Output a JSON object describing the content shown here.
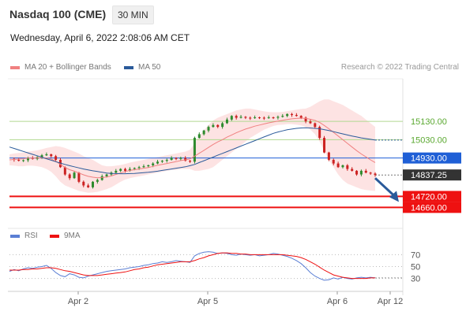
{
  "header": {
    "instrument": "Nasdaq 100 (CME)",
    "timeframe": "30 MIN",
    "datetime": "Wednesday, April 6, 2022 2:08:06 AM CET"
  },
  "legend": {
    "ma20": "MA 20 + Bollinger Bands",
    "ma50": "MA 50",
    "credit": "Research © 2022 Trading Central"
  },
  "rsi_legend": {
    "rsi": "RSI",
    "ma9": "9MA"
  },
  "colors": {
    "ma20": "#f08080",
    "ma50": "#2a5a9a",
    "bollinger": "#fde0e0",
    "up": "#2e8b2e",
    "down": "#cc2222",
    "resistance": "#b0d890",
    "pivot": "#1f5fd6",
    "support": "#ee1111",
    "last": "#333333",
    "arrow": "#2a5a9a",
    "rsi": "#5b7fd4",
    "rsi_ma": "#ee1111"
  },
  "chart_data": [
    {
      "type": "candlestick",
      "title": "Nasdaq 100 (CME)",
      "timeframe": "30 MIN",
      "x_ticks": [
        "Apr 2",
        "Apr 5",
        "Apr 6",
        "Apr 12"
      ],
      "ylim": [
        14610,
        15320
      ],
      "levels": [
        {
          "label": "15130.00",
          "value": 15130,
          "kind": "resistance"
        },
        {
          "label": "15030.00",
          "value": 15030,
          "kind": "resistance"
        },
        {
          "label": "14930.00",
          "value": 14930,
          "kind": "pivot"
        },
        {
          "label": "14837.25",
          "value": 14837.25,
          "kind": "last"
        },
        {
          "label": "14720.00",
          "value": 14720,
          "kind": "support"
        },
        {
          "label": "14660.00",
          "value": 14660,
          "kind": "support"
        }
      ],
      "closes": [
        14925,
        14920,
        14915,
        14918,
        14930,
        14925,
        14935,
        14945,
        14950,
        14940,
        14920,
        14880,
        14840,
        14820,
        14850,
        14800,
        14780,
        14770,
        14800,
        14810,
        14830,
        14840,
        14850,
        14860,
        14870,
        14860,
        14870,
        14875,
        14880,
        14885,
        14890,
        14900,
        14910,
        14915,
        14920,
        14930,
        14925,
        14930,
        14915,
        14910,
        15040,
        15060,
        15080,
        15100,
        15110,
        15100,
        15120,
        15140,
        15160,
        15150,
        15155,
        15150,
        15148,
        15152,
        15150,
        15148,
        15152,
        15150,
        15155,
        15160,
        15170,
        15165,
        15160,
        15150,
        15130,
        15120,
        15100,
        15040,
        14960,
        14920,
        14900,
        14880,
        14890,
        14870,
        14860,
        14840,
        14860,
        14850,
        14845,
        14837.25
      ],
      "ma20": [
        14920,
        14922,
        14924,
        14926,
        14930,
        14929,
        14930,
        14932,
        14930,
        14925,
        14912,
        14895,
        14878,
        14866,
        14858,
        14848,
        14838,
        14830,
        14825,
        14822,
        14823,
        14826,
        14832,
        14840,
        14848,
        14856,
        14862,
        14866,
        14870,
        14874,
        14878,
        14884,
        14890,
        14895,
        14900,
        14905,
        14910,
        14916,
        14920,
        14925,
        14940,
        14956,
        14972,
        14988,
        15004,
        15018,
        15030,
        15044,
        15056,
        15068,
        15078,
        15088,
        15096,
        15104,
        15110,
        15116,
        15122,
        15127,
        15132,
        15136,
        15140,
        15144,
        15146,
        15148,
        15146,
        15142,
        15136,
        15124,
        15108,
        15090,
        15070,
        15050,
        15030,
        15010,
        14990,
        14970,
        14952,
        14936,
        14920,
        14905
      ],
      "bb_upper": [
        14950,
        14955,
        14958,
        14960,
        14965,
        14968,
        14972,
        14978,
        14985,
        14990,
        14995,
        14992,
        14985,
        14975,
        14965,
        14955,
        14940,
        14930,
        14920,
        14905,
        14890,
        14885,
        14885,
        14888,
        14892,
        14898,
        14905,
        14910,
        14915,
        14920,
        14925,
        14930,
        14935,
        14940,
        14945,
        14950,
        14955,
        14960,
        14965,
        14975,
        15010,
        15050,
        15080,
        15110,
        15135,
        15150,
        15160,
        15170,
        15180,
        15190,
        15195,
        15200,
        15200,
        15195,
        15190,
        15185,
        15182,
        15180,
        15180,
        15182,
        15186,
        15190,
        15194,
        15198,
        15200,
        15210,
        15225,
        15240,
        15250,
        15250,
        15240,
        15230,
        15220,
        15205,
        15190,
        15175,
        15160,
        15140,
        15120,
        15100
      ],
      "bb_lower": [
        14890,
        14888,
        14885,
        14885,
        14888,
        14888,
        14885,
        14880,
        14870,
        14855,
        14830,
        14800,
        14780,
        14770,
        14760,
        14750,
        14745,
        14740,
        14742,
        14745,
        14752,
        14760,
        14770,
        14785,
        14800,
        14812,
        14820,
        14825,
        14830,
        14835,
        14840,
        14845,
        14850,
        14855,
        14860,
        14865,
        14865,
        14870,
        14870,
        14870,
        14860,
        14860,
        14865,
        14870,
        14880,
        14900,
        14920,
        14940,
        14960,
        14980,
        15000,
        15020,
        15040,
        15055,
        15070,
        15085,
        15095,
        15105,
        15110,
        15112,
        15115,
        15115,
        15112,
        15108,
        15100,
        15085,
        15060,
        15020,
        14970,
        14920,
        14880,
        14840,
        14810,
        14790,
        14780,
        14770,
        14760,
        14755,
        14752,
        14750
      ],
      "ma50": [
        14990,
        14982,
        14974,
        14966,
        14958,
        14950,
        14942,
        14934,
        14926,
        14918,
        14910,
        14902,
        14895,
        14888,
        14882,
        14876,
        14870,
        14865,
        14860,
        14856,
        14852,
        14848,
        14846,
        14845,
        14844,
        14844,
        14845,
        14846,
        14848,
        14850,
        14852,
        14855,
        14858,
        14862,
        14866,
        14870,
        14874,
        14878,
        14882,
        14888,
        14895,
        14905,
        14915,
        14925,
        14935,
        14945,
        14955,
        14965,
        14975,
        14985,
        14995,
        15005,
        15015,
        15025,
        15035,
        15045,
        15055,
        15065,
        15072,
        15078,
        15084,
        15088,
        15092,
        15094,
        15095,
        15094,
        15092,
        15090,
        15085,
        15080,
        15074,
        15068,
        15062,
        15056,
        15050,
        15045,
        15040,
        15036,
        15032,
        15028
      ]
    },
    {
      "type": "line",
      "title": "RSI",
      "ylim": [
        15,
        85
      ],
      "y_ticks": [
        70,
        50,
        30
      ],
      "series": [
        {
          "name": "RSI",
          "values": [
            42,
            45,
            43,
            46,
            48,
            47,
            49,
            50,
            52,
            47,
            40,
            35,
            33,
            38,
            36,
            32,
            31,
            34,
            36,
            38,
            40,
            42,
            43,
            44,
            45,
            46,
            48,
            49,
            50,
            52,
            53,
            55,
            56,
            58,
            57,
            58,
            60,
            59,
            58,
            57,
            68,
            72,
            74,
            75,
            74,
            72,
            73,
            72,
            70,
            69,
            71,
            70,
            69,
            70,
            68,
            69,
            70,
            72,
            71,
            69,
            67,
            64,
            60,
            55,
            48,
            40,
            34,
            30,
            27,
            28,
            31,
            29,
            32,
            30,
            29,
            31,
            32,
            31,
            32,
            31
          ]
        },
        {
          "name": "9MA",
          "values": [
            44,
            44,
            44,
            45,
            45,
            46,
            46,
            47,
            48,
            48,
            47,
            45,
            43,
            42,
            40,
            38,
            36,
            35,
            35,
            35,
            36,
            37,
            38,
            39,
            40,
            41,
            43,
            45,
            46,
            48,
            49,
            51,
            53,
            54,
            55,
            56,
            57,
            58,
            58,
            58,
            60,
            63,
            65,
            68,
            70,
            72,
            73,
            73,
            72,
            72,
            71,
            71,
            70,
            70,
            70,
            70,
            70,
            70,
            70,
            70,
            69,
            68,
            67,
            65,
            62,
            58,
            54,
            49,
            44,
            40,
            36,
            34,
            32,
            31,
            30,
            30,
            30,
            30,
            31,
            31
          ]
        }
      ]
    }
  ]
}
